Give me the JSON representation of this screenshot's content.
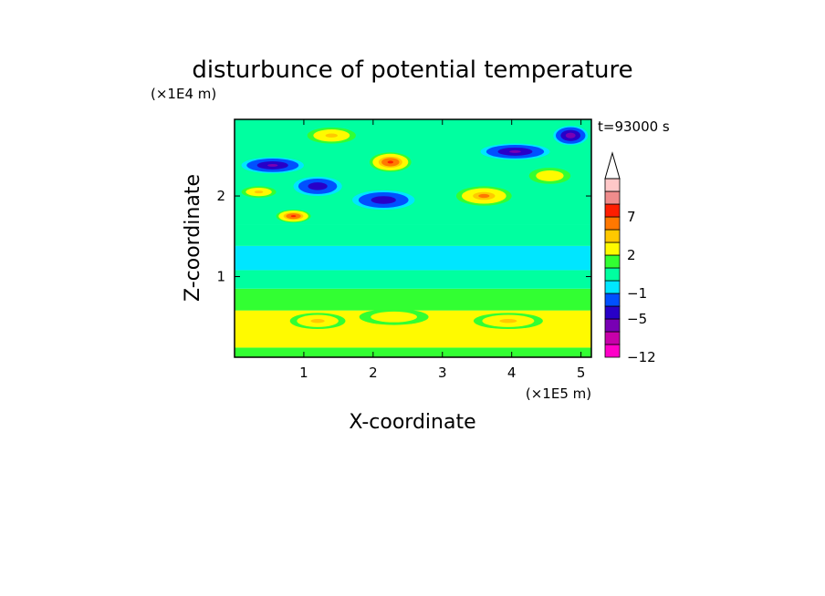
{
  "chart_data": {
    "type": "heatmap",
    "title": "disturbunce of potential temperature",
    "xlabel": "X-coordinate",
    "ylabel": "Z-coordinate",
    "x_unit": "(×1E5 m)",
    "y_unit": "(×1E4 m)",
    "time_label": "t=93000 s",
    "xlim": [
      0,
      5.15
    ],
    "ylim": [
      0,
      2.95
    ],
    "x_ticks": [
      1,
      2,
      3,
      4,
      5
    ],
    "y_ticks": [
      1,
      2
    ],
    "colorbar": {
      "levels": [
        -12,
        -9,
        -7,
        -5,
        -3,
        -1,
        0,
        1,
        2,
        4,
        5,
        7,
        9,
        11
      ],
      "labels": [
        "-12",
        "-5",
        "-1",
        "2",
        "7"
      ],
      "label_levels": [
        -12,
        -5,
        -1,
        2,
        7
      ],
      "colors": [
        "#ff00c8",
        "#c800aa",
        "#7800b4",
        "#2800c8",
        "#0050ff",
        "#00e6ff",
        "#00ffa0",
        "#32ff32",
        "#fffa00",
        "#ffc800",
        "#ff7800",
        "#ff1e00",
        "#f08c8c",
        "#ffc8c8"
      ],
      "extend_top_color": "#ffffff"
    },
    "bands": [
      {
        "z": [
          0.0,
          0.12
        ],
        "value": 1.5
      },
      {
        "z": [
          0.12,
          0.58
        ],
        "value": 3.5
      },
      {
        "z": [
          0.58,
          0.85
        ],
        "value": 1.5
      },
      {
        "z": [
          0.85,
          1.08
        ],
        "value": 0.5
      },
      {
        "z": [
          1.08,
          1.38
        ],
        "value": -0.5
      },
      {
        "z": [
          1.38,
          1.65
        ],
        "value": 0.5
      },
      {
        "z": [
          1.65,
          2.95
        ],
        "value": 0.5
      }
    ],
    "features": [
      {
        "x": 0.55,
        "z": 2.38,
        "value": -6,
        "sx": 0.45,
        "sz": 0.1
      },
      {
        "x": 1.2,
        "z": 2.12,
        "value": -5,
        "sx": 0.35,
        "sz": 0.12
      },
      {
        "x": 2.15,
        "z": 1.95,
        "value": -5,
        "sx": 0.45,
        "sz": 0.12
      },
      {
        "x": 4.05,
        "z": 2.55,
        "value": -6,
        "sx": 0.5,
        "sz": 0.1
      },
      {
        "x": 4.85,
        "z": 2.75,
        "value": -7,
        "sx": 0.25,
        "sz": 0.12
      },
      {
        "x": 0.85,
        "z": 1.75,
        "value": 7,
        "sx": 0.25,
        "sz": 0.08
      },
      {
        "x": 2.25,
        "z": 2.42,
        "value": 7,
        "sx": 0.3,
        "sz": 0.12
      },
      {
        "x": 3.6,
        "z": 2.0,
        "value": 5,
        "sx": 0.4,
        "sz": 0.12
      },
      {
        "x": 1.4,
        "z": 2.75,
        "value": 4,
        "sx": 0.35,
        "sz": 0.1
      },
      {
        "x": 0.35,
        "z": 2.05,
        "value": 4,
        "sx": 0.25,
        "sz": 0.07
      },
      {
        "x": 4.55,
        "z": 2.25,
        "value": 3,
        "sx": 0.3,
        "sz": 0.1
      },
      {
        "x": 1.2,
        "z": 0.45,
        "value": 4,
        "sx": 0.4,
        "sz": 0.1
      },
      {
        "x": 3.95,
        "z": 0.45,
        "value": 4,
        "sx": 0.5,
        "sz": 0.1
      },
      {
        "x": 2.3,
        "z": 0.5,
        "value": 3,
        "sx": 0.5,
        "sz": 0.1
      }
    ]
  }
}
